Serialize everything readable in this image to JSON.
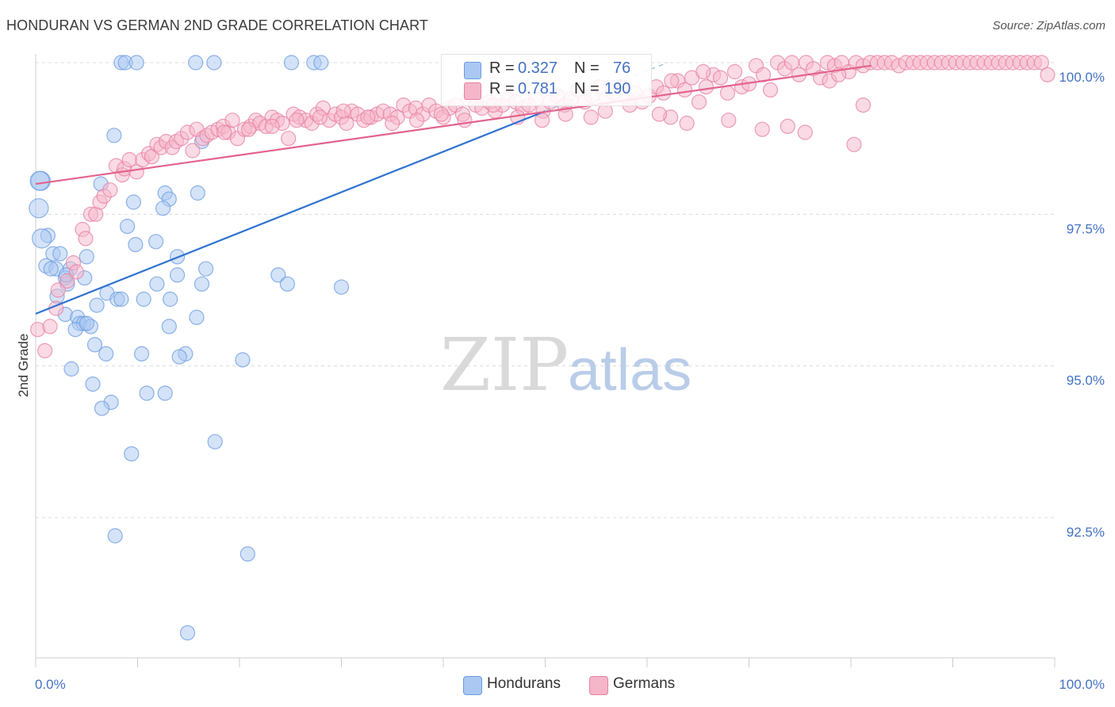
{
  "header": {
    "title": "HONDURAN VS GERMAN 2ND GRADE CORRELATION CHART",
    "source": "Source: ZipAtlas.com"
  },
  "watermark": {
    "zip": "ZIP",
    "atlas": "atlas"
  },
  "legend": {
    "rows": [
      {
        "r_label": "R =",
        "r_value": "0.327",
        "n_label": "N =",
        "n_value": "76",
        "color": "#aac8f2"
      },
      {
        "r_label": "R =",
        "r_value": "0.781",
        "n_label": "N =",
        "n_value": "190",
        "color": "#f5b6ca"
      }
    ]
  },
  "chart_data": {
    "type": "scatter",
    "xlabel": "",
    "ylabel": "2nd Grade",
    "xlim": [
      0,
      100
    ],
    "ylim": [
      90.3,
      100.4
    ],
    "x_tick_labels": [
      "0.0%",
      "100.0%"
    ],
    "y_ticks": [
      {
        "value": 100.0,
        "label": "100.0%"
      },
      {
        "value": 97.5,
        "label": "97.5%"
      },
      {
        "value": 95.0,
        "label": "95.0%"
      },
      {
        "value": 92.5,
        "label": "92.5%"
      }
    ],
    "grid": true,
    "legend_position": "bottom-center",
    "series": [
      {
        "name": "Hondurans",
        "color": "#6a9be0",
        "fill": "#aac8f2",
        "trendline": {
          "x": [
            0,
            50
          ],
          "y": [
            95.86,
            99.2
          ]
        },
        "points": [
          [
            8.4,
            100
          ],
          [
            8.8,
            100
          ],
          [
            9.9,
            100
          ],
          [
            15.7,
            100
          ],
          [
            17.5,
            100
          ],
          [
            25.1,
            100
          ],
          [
            27.3,
            100
          ],
          [
            28,
            100
          ],
          [
            7.7,
            98.8
          ],
          [
            16.3,
            98.7
          ],
          [
            6.4,
            98.0
          ],
          [
            0.5,
            98.05
          ],
          [
            12.7,
            97.85
          ],
          [
            13.1,
            97.75
          ],
          [
            15.9,
            97.85
          ],
          [
            9.6,
            97.7
          ],
          [
            12.5,
            97.6
          ],
          [
            0.3,
            97.6
          ],
          [
            1.2,
            97.15
          ],
          [
            0.6,
            97.1
          ],
          [
            9.0,
            97.3
          ],
          [
            9.8,
            97.0
          ],
          [
            11.8,
            97.05
          ],
          [
            1.7,
            96.85
          ],
          [
            2.4,
            96.85
          ],
          [
            5.0,
            96.8
          ],
          [
            13.9,
            96.8
          ],
          [
            1.0,
            96.65
          ],
          [
            2.0,
            96.6
          ],
          [
            3.4,
            96.6
          ],
          [
            16.7,
            96.6
          ],
          [
            2.9,
            96.45
          ],
          [
            4.8,
            96.45
          ],
          [
            13.9,
            96.5
          ],
          [
            3.1,
            96.35
          ],
          [
            11.9,
            96.35
          ],
          [
            16.3,
            96.35
          ],
          [
            23.8,
            96.5
          ],
          [
            24.7,
            96.35
          ],
          [
            30.0,
            96.3
          ],
          [
            7.0,
            96.2
          ],
          [
            8.0,
            96.1
          ],
          [
            8.4,
            96.1
          ],
          [
            10.6,
            96.1
          ],
          [
            13.2,
            96.1
          ],
          [
            2.1,
            96.15
          ],
          [
            6.0,
            96.0
          ],
          [
            2.9,
            95.85
          ],
          [
            4.1,
            95.8
          ],
          [
            15.8,
            95.8
          ],
          [
            4.3,
            95.7
          ],
          [
            4.7,
            95.7
          ],
          [
            5.4,
            95.65
          ],
          [
            3.9,
            95.6
          ],
          [
            13.1,
            95.65
          ],
          [
            5.8,
            95.35
          ],
          [
            6.9,
            95.2
          ],
          [
            10.4,
            95.2
          ],
          [
            14.7,
            95.2
          ],
          [
            14.1,
            95.15
          ],
          [
            20.3,
            95.1
          ],
          [
            3.5,
            94.95
          ],
          [
            5.6,
            94.7
          ],
          [
            10.9,
            94.55
          ],
          [
            12.7,
            94.55
          ],
          [
            7.4,
            94.4
          ],
          [
            6.5,
            94.3
          ],
          [
            17.6,
            93.75
          ],
          [
            9.4,
            93.55
          ],
          [
            7.8,
            92.2
          ],
          [
            20.8,
            91.9
          ],
          [
            14.9,
            90.6
          ],
          [
            0.4,
            98.05
          ],
          [
            1.5,
            96.6
          ],
          [
            3.0,
            96.5
          ],
          [
            5.0,
            95.7
          ]
        ]
      },
      {
        "name": "Germans",
        "color": "#e77fa0",
        "fill": "#f5b6ca",
        "trendline": {
          "x": [
            0,
            82
          ],
          "y": [
            98.0,
            99.95
          ]
        },
        "points": [
          [
            0.2,
            95.6
          ],
          [
            1.4,
            95.65
          ],
          [
            0.9,
            95.25
          ],
          [
            2.0,
            95.95
          ],
          [
            2.2,
            96.25
          ],
          [
            3.1,
            96.4
          ],
          [
            3.7,
            96.7
          ],
          [
            4.0,
            96.55
          ],
          [
            4.6,
            97.25
          ],
          [
            4.9,
            97.1
          ],
          [
            5.4,
            97.5
          ],
          [
            5.9,
            97.5
          ],
          [
            6.3,
            97.7
          ],
          [
            6.7,
            97.8
          ],
          [
            7.3,
            97.9
          ],
          [
            7.9,
            98.3
          ],
          [
            8.5,
            98.15
          ],
          [
            8.7,
            98.25
          ],
          [
            9.2,
            98.4
          ],
          [
            9.9,
            98.2
          ],
          [
            10.5,
            98.4
          ],
          [
            11.1,
            98.5
          ],
          [
            11.4,
            98.45
          ],
          [
            11.9,
            98.65
          ],
          [
            12.3,
            98.6
          ],
          [
            12.8,
            98.7
          ],
          [
            13.4,
            98.6
          ],
          [
            13.8,
            98.7
          ],
          [
            14.3,
            98.75
          ],
          [
            14.9,
            98.85
          ],
          [
            15.4,
            98.55
          ],
          [
            15.8,
            98.9
          ],
          [
            16.4,
            98.75
          ],
          [
            16.8,
            98.8
          ],
          [
            17.3,
            98.85
          ],
          [
            17.9,
            98.9
          ],
          [
            18.4,
            98.95
          ],
          [
            18.9,
            98.85
          ],
          [
            19.3,
            99.05
          ],
          [
            19.8,
            98.75
          ],
          [
            20.5,
            98.9
          ],
          [
            21.1,
            98.95
          ],
          [
            21.6,
            99.05
          ],
          [
            22.0,
            99.0
          ],
          [
            22.6,
            98.95
          ],
          [
            23.2,
            99.1
          ],
          [
            23.7,
            99.05
          ],
          [
            24.2,
            99.0
          ],
          [
            24.8,
            98.75
          ],
          [
            25.3,
            99.15
          ],
          [
            25.9,
            99.1
          ],
          [
            26.5,
            99.05
          ],
          [
            27.1,
            99.0
          ],
          [
            27.6,
            99.15
          ],
          [
            28.2,
            99.25
          ],
          [
            28.8,
            99.05
          ],
          [
            29.4,
            99.15
          ],
          [
            30.0,
            99.1
          ],
          [
            30.5,
            99.0
          ],
          [
            31.0,
            99.2
          ],
          [
            31.6,
            99.15
          ],
          [
            32.2,
            99.05
          ],
          [
            32.9,
            99.1
          ],
          [
            33.5,
            99.15
          ],
          [
            34.1,
            99.2
          ],
          [
            34.8,
            99.15
          ],
          [
            35.5,
            99.1
          ],
          [
            36.1,
            99.3
          ],
          [
            36.7,
            99.2
          ],
          [
            37.3,
            99.25
          ],
          [
            38.0,
            99.15
          ],
          [
            38.6,
            99.3
          ],
          [
            39.3,
            99.2
          ],
          [
            40.0,
            99.1
          ],
          [
            40.6,
            99.25
          ],
          [
            41.2,
            99.3
          ],
          [
            41.9,
            99.15
          ],
          [
            42.5,
            99.4
          ],
          [
            43.2,
            99.3
          ],
          [
            43.8,
            99.25
          ],
          [
            44.5,
            99.35
          ],
          [
            45.1,
            99.2
          ],
          [
            45.8,
            99.3
          ],
          [
            46.4,
            99.4
          ],
          [
            47.1,
            99.35
          ],
          [
            47.8,
            99.25
          ],
          [
            48.4,
            99.3
          ],
          [
            49.1,
            99.4
          ],
          [
            49.8,
            99.2
          ],
          [
            50.5,
            99.35
          ],
          [
            51.2,
            99.45
          ],
          [
            51.9,
            99.3
          ],
          [
            52.5,
            99.4
          ],
          [
            53.2,
            99.55
          ],
          [
            53.9,
            99.35
          ],
          [
            54.6,
            99.45
          ],
          [
            55.3,
            99.6
          ],
          [
            56.0,
            99.4
          ],
          [
            56.7,
            99.5
          ],
          [
            57.4,
            99.6
          ],
          [
            58.1,
            99.4
          ],
          [
            58.8,
            99.5
          ],
          [
            59.5,
            99.35
          ],
          [
            60.2,
            99.45
          ],
          [
            60.9,
            99.6
          ],
          [
            61.6,
            99.5
          ],
          [
            62.3,
            99.1
          ],
          [
            63.0,
            99.7
          ],
          [
            63.7,
            99.55
          ],
          [
            64.4,
            99.75
          ],
          [
            65.1,
            99.35
          ],
          [
            65.8,
            99.6
          ],
          [
            66.5,
            99.8
          ],
          [
            67.2,
            99.75
          ],
          [
            67.9,
            99.5
          ],
          [
            68.6,
            99.85
          ],
          [
            69.3,
            99.6
          ],
          [
            70.0,
            99.65
          ],
          [
            70.7,
            99.95
          ],
          [
            71.4,
            99.8
          ],
          [
            72.1,
            99.55
          ],
          [
            72.8,
            100
          ],
          [
            73.5,
            99.9
          ],
          [
            74.2,
            100
          ],
          [
            74.9,
            99.8
          ],
          [
            75.6,
            100
          ],
          [
            76.3,
            99.9
          ],
          [
            77.0,
            99.75
          ],
          [
            77.7,
            100
          ],
          [
            78.4,
            99.95
          ],
          [
            79.1,
            100
          ],
          [
            79.8,
            99.85
          ],
          [
            80.5,
            100
          ],
          [
            81.2,
            99.95
          ],
          [
            81.9,
            100
          ],
          [
            82.6,
            100
          ],
          [
            83.3,
            100
          ],
          [
            84.0,
            100
          ],
          [
            84.7,
            99.95
          ],
          [
            85.4,
            100
          ],
          [
            86.1,
            100
          ],
          [
            86.8,
            100
          ],
          [
            87.5,
            100
          ],
          [
            88.2,
            100
          ],
          [
            88.9,
            100
          ],
          [
            89.6,
            100
          ],
          [
            90.3,
            100
          ],
          [
            91.0,
            100
          ],
          [
            91.7,
            100
          ],
          [
            92.4,
            100
          ],
          [
            93.1,
            100
          ],
          [
            93.8,
            100
          ],
          [
            94.5,
            100
          ],
          [
            95.2,
            100
          ],
          [
            95.9,
            100
          ],
          [
            96.6,
            100
          ],
          [
            97.3,
            100
          ],
          [
            98.0,
            100
          ],
          [
            98.7,
            100
          ],
          [
            99.3,
            99.8
          ],
          [
            62.4,
            99.7
          ],
          [
            65.5,
            99.85
          ],
          [
            68.0,
            99.05
          ],
          [
            71.3,
            98.9
          ],
          [
            73.8,
            98.95
          ],
          [
            75.5,
            98.85
          ],
          [
            77.9,
            99.7
          ],
          [
            78.8,
            99.8
          ],
          [
            81.2,
            99.3
          ],
          [
            80.3,
            98.65
          ],
          [
            63.9,
            99.0
          ],
          [
            61.2,
            99.15
          ],
          [
            58.3,
            99.3
          ],
          [
            55.9,
            99.2
          ],
          [
            54.5,
            99.1
          ],
          [
            52.0,
            99.15
          ],
          [
            49.7,
            99.05
          ],
          [
            47.3,
            99.1
          ],
          [
            44.9,
            99.3
          ],
          [
            42.1,
            99.05
          ],
          [
            39.8,
            99.15
          ],
          [
            37.4,
            99.05
          ],
          [
            35.0,
            99.0
          ],
          [
            32.6,
            99.1
          ],
          [
            30.2,
            99.2
          ],
          [
            27.9,
            99.1
          ],
          [
            25.6,
            99.05
          ],
          [
            23.2,
            98.95
          ],
          [
            20.9,
            98.9
          ],
          [
            18.5,
            98.85
          ]
        ]
      }
    ]
  },
  "bottom_legend": {
    "items": [
      {
        "label": "Hondurans",
        "color": "#aac8f2"
      },
      {
        "label": "Germans",
        "color": "#f5b6ca"
      }
    ]
  }
}
